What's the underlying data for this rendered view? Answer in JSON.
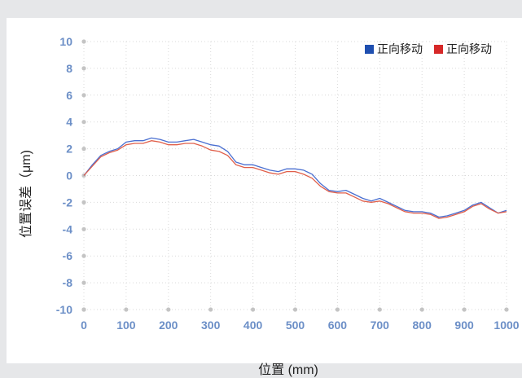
{
  "chart_data": {
    "type": "line",
    "xlabel": "位置 (mm)",
    "ylabel": "位置误差（μm)",
    "xlim": [
      0,
      1000
    ],
    "ylim": [
      -10,
      10
    ],
    "xticks": [
      0,
      100,
      200,
      300,
      400,
      500,
      600,
      700,
      800,
      900,
      1000
    ],
    "yticks": [
      10,
      8,
      6,
      4,
      2,
      0,
      -2,
      -4,
      -6,
      -8,
      -10
    ],
    "grid": true,
    "legend_position": "top-right",
    "x": [
      0,
      20,
      40,
      60,
      80,
      100,
      120,
      140,
      160,
      180,
      200,
      220,
      240,
      260,
      280,
      300,
      320,
      340,
      360,
      380,
      400,
      420,
      440,
      460,
      480,
      500,
      520,
      540,
      560,
      580,
      600,
      620,
      640,
      660,
      680,
      700,
      720,
      740,
      760,
      780,
      800,
      820,
      840,
      860,
      880,
      900,
      920,
      940,
      960,
      980,
      1000
    ],
    "series": [
      {
        "name": "正向移动",
        "color": "#4a6fd1",
        "values": [
          0.0,
          0.8,
          1.5,
          1.8,
          2.0,
          2.5,
          2.6,
          2.6,
          2.8,
          2.7,
          2.5,
          2.5,
          2.6,
          2.7,
          2.5,
          2.3,
          2.2,
          1.8,
          1.0,
          0.8,
          0.8,
          0.6,
          0.4,
          0.3,
          0.5,
          0.5,
          0.4,
          0.1,
          -0.6,
          -1.1,
          -1.2,
          -1.1,
          -1.4,
          -1.7,
          -1.9,
          -1.7,
          -2.0,
          -2.3,
          -2.6,
          -2.7,
          -2.7,
          -2.8,
          -3.1,
          -3.0,
          -2.8,
          -2.6,
          -2.2,
          -2.0,
          -2.4,
          -2.8,
          -2.6
        ]
      },
      {
        "name": "正向移动",
        "color": "#e05f4a",
        "values": [
          0.0,
          0.7,
          1.4,
          1.7,
          1.9,
          2.3,
          2.4,
          2.4,
          2.6,
          2.5,
          2.3,
          2.3,
          2.4,
          2.4,
          2.2,
          1.9,
          1.8,
          1.5,
          0.8,
          0.6,
          0.6,
          0.4,
          0.2,
          0.1,
          0.3,
          0.3,
          0.1,
          -0.2,
          -0.8,
          -1.2,
          -1.3,
          -1.3,
          -1.6,
          -1.9,
          -2.0,
          -1.9,
          -2.1,
          -2.4,
          -2.7,
          -2.8,
          -2.8,
          -2.9,
          -3.2,
          -3.1,
          -2.9,
          -2.7,
          -2.3,
          -2.1,
          -2.5,
          -2.8,
          -2.7
        ]
      }
    ]
  },
  "legend": [
    {
      "label": "正向移动",
      "color": "#1f4fb0"
    },
    {
      "label": "正向移动",
      "color": "#d62828"
    }
  ],
  "colors": {
    "axis_label": "#6c8fc7",
    "tick_marker": "#c4c4c4",
    "grid": "#d9d9d9"
  }
}
